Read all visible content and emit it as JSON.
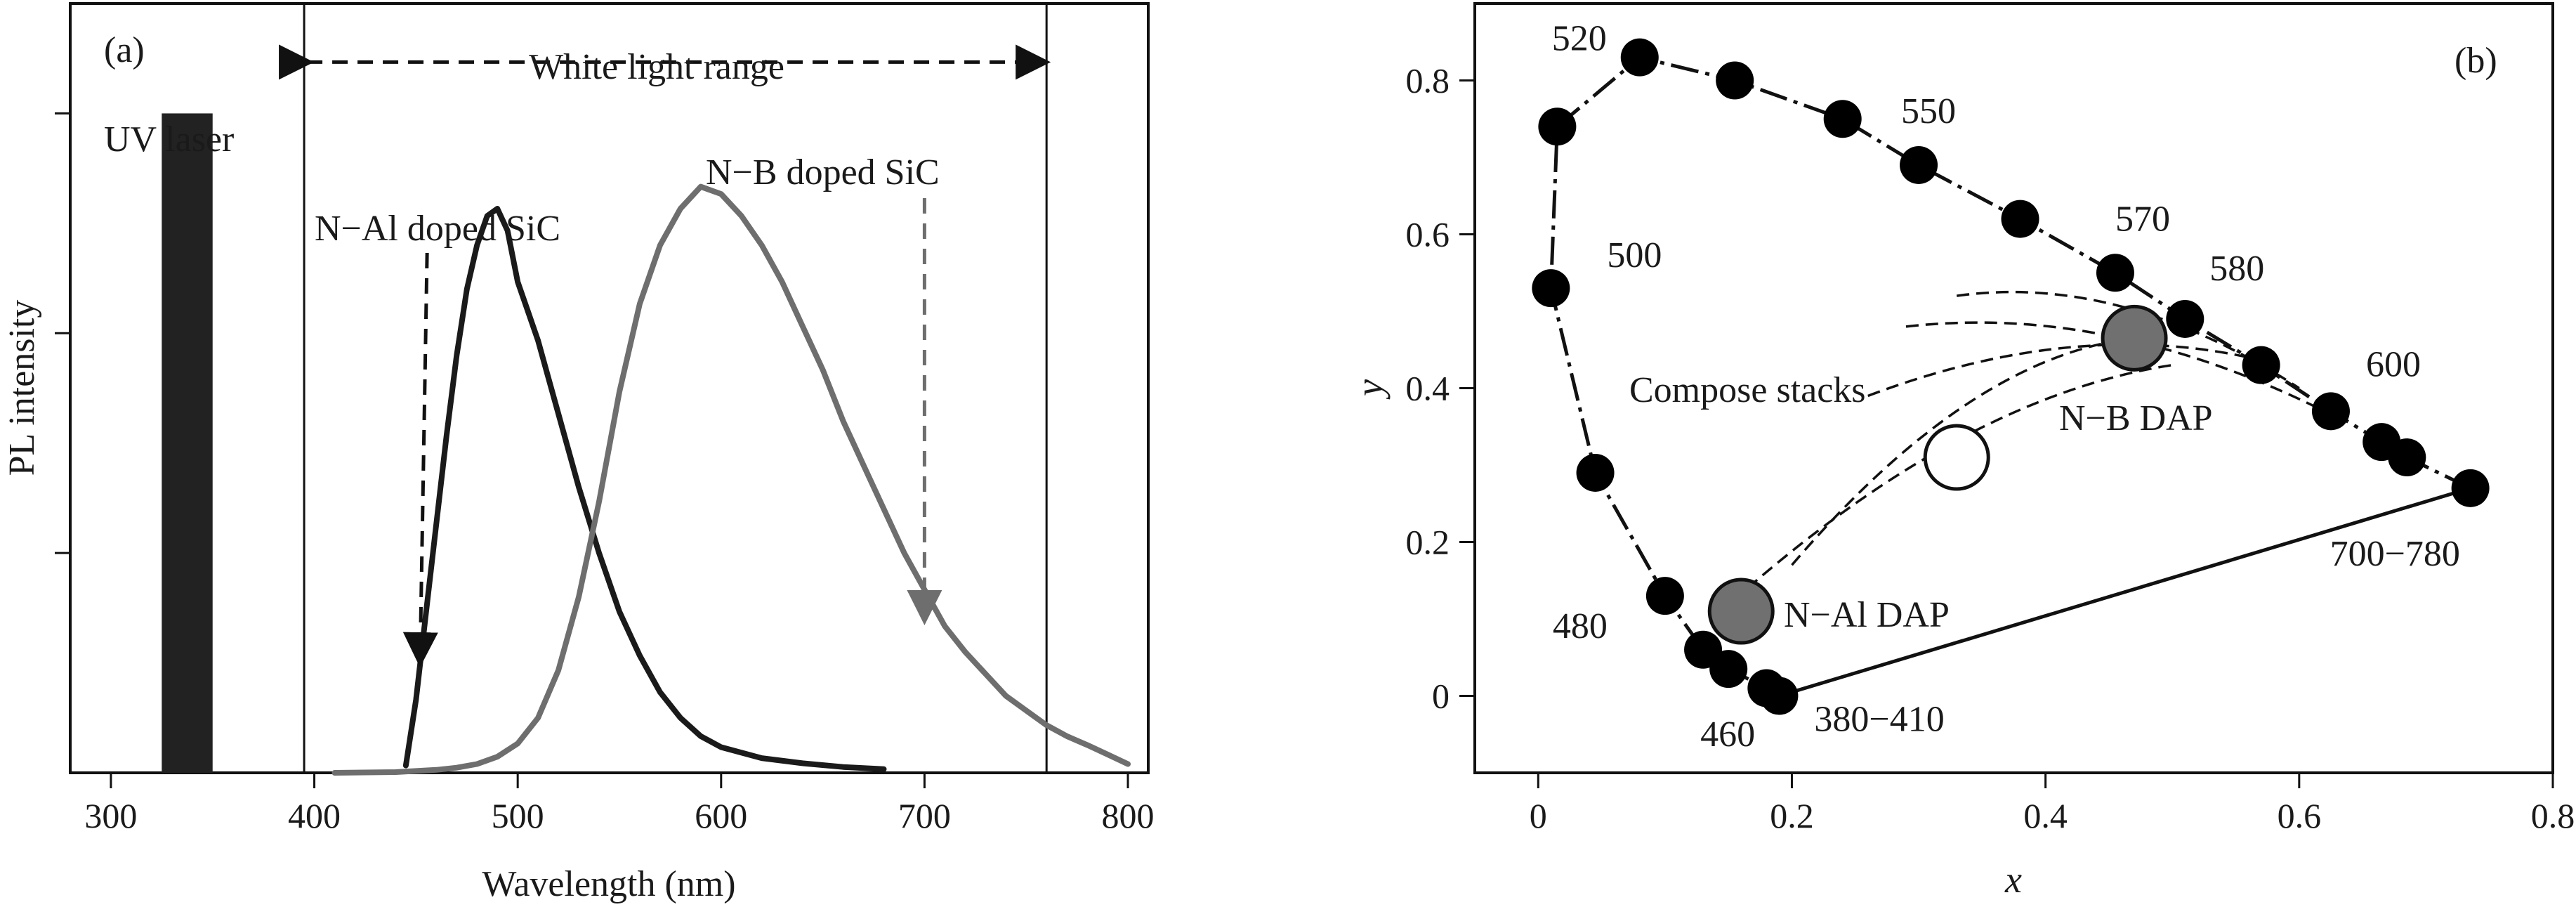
{
  "panels": [
    {
      "id": "a",
      "tag": "(a)",
      "header_label": "White light range",
      "uv_label": "UV laser",
      "nal_label": "N−Al doped SiC",
      "nb_label": "N−B doped SiC"
    },
    {
      "id": "b",
      "tag": "(b)",
      "compose_label": "Compose stacks",
      "nb_dap_label": "N−B DAP",
      "nal_dap_label": "N−Al DAP"
    }
  ],
  "chart_data": [
    {
      "type": "line",
      "panel": "(a)",
      "title": "",
      "xlabel": "Wavelength (nm)",
      "ylabel": "PL intensity",
      "xlim": [
        280,
        810
      ],
      "ylim": [
        0,
        1.05
      ],
      "x_ticks": [
        300,
        400,
        500,
        600,
        700,
        800
      ],
      "x_tick_labels": [
        "300",
        "400",
        "500",
        "600",
        "700",
        "800"
      ],
      "y_ticks": [
        0.3,
        0.6,
        0.9
      ],
      "y_tick_labels": [
        "",
        "",
        ""
      ],
      "grid": false,
      "series": [
        {
          "name": "N−Al doped SiC",
          "color": "#1a1a1a",
          "x": [
            445,
            450,
            455,
            460,
            465,
            470,
            475,
            480,
            485,
            490,
            495,
            500,
            505,
            510,
            515,
            520,
            530,
            540,
            550,
            560,
            570,
            580,
            590,
            600,
            620,
            640,
            660,
            680
          ],
          "y": [
            0.01,
            0.1,
            0.22,
            0.34,
            0.46,
            0.57,
            0.66,
            0.72,
            0.76,
            0.77,
            0.74,
            0.67,
            0.63,
            0.59,
            0.54,
            0.49,
            0.39,
            0.3,
            0.22,
            0.16,
            0.11,
            0.075,
            0.05,
            0.035,
            0.02,
            0.013,
            0.008,
            0.005
          ]
        },
        {
          "name": "N−B doped SiC",
          "color": "#6e6e6e",
          "x": [
            410,
            440,
            460,
            470,
            480,
            490,
            500,
            510,
            520,
            530,
            540,
            550,
            560,
            570,
            580,
            590,
            600,
            610,
            620,
            630,
            640,
            650,
            660,
            670,
            680,
            690,
            700,
            710,
            720,
            730,
            740,
            750,
            760,
            770,
            780,
            790,
            800
          ],
          "y": [
            0.0,
            0.001,
            0.004,
            0.007,
            0.012,
            0.022,
            0.04,
            0.075,
            0.14,
            0.24,
            0.37,
            0.52,
            0.64,
            0.72,
            0.77,
            0.8,
            0.79,
            0.76,
            0.72,
            0.67,
            0.61,
            0.55,
            0.48,
            0.42,
            0.36,
            0.3,
            0.25,
            0.2,
            0.165,
            0.135,
            0.105,
            0.085,
            0.065,
            0.05,
            0.038,
            0.025,
            0.012
          ]
        }
      ],
      "bars": [
        {
          "name": "UV laser",
          "x_from": 325,
          "x_to": 350,
          "y": 0.9,
          "color": "#222222"
        }
      ],
      "vertical_lines": [
        395,
        760
      ],
      "range_arrow": {
        "label": "White light range",
        "from": 395,
        "to": 760
      },
      "annotations": [
        {
          "text": "N−Al doped SiC",
          "arrow_at_x": 452
        },
        {
          "text": "N−B doped SiC",
          "arrow_at_x": 700
        }
      ]
    },
    {
      "type": "scatter",
      "panel": "(b)",
      "title": "",
      "xlabel": "x",
      "ylabel": "y",
      "xlim": [
        -0.05,
        0.8
      ],
      "ylim": [
        -0.1,
        0.9
      ],
      "x_ticks": [
        0,
        0.2,
        0.4,
        0.6,
        0.8
      ],
      "x_tick_labels": [
        "0",
        "0.2",
        "0.4",
        "0.6",
        "0.8"
      ],
      "y_ticks": [
        0,
        0.2,
        0.4,
        0.6,
        0.8
      ],
      "y_tick_labels": [
        "0",
        "0.2",
        "0.4",
        "0.6",
        "0.8"
      ],
      "grid": false,
      "series": [
        {
          "name": "",
          "color": "#000000",
          "x": [
            0.19,
            0.18,
            0.15,
            0.13,
            0.1,
            0.045,
            0.01,
            0.015,
            0.08,
            0.155,
            0.24,
            0.3,
            0.38,
            0.455,
            0.51,
            0.57,
            0.625,
            0.665,
            0.685,
            0.735
          ],
          "y": [
            0.0,
            0.01,
            0.035,
            0.06,
            0.13,
            0.29,
            0.53,
            0.74,
            0.83,
            0.8,
            0.75,
            0.69,
            0.62,
            0.55,
            0.49,
            0.43,
            0.37,
            0.33,
            0.31,
            0.27
          ]
        }
      ],
      "special_points": [
        {
          "name": "N−Al DAP",
          "x": 0.16,
          "y": 0.11,
          "fill": "#707070"
        },
        {
          "name": "N−B DAP",
          "x": 0.47,
          "y": 0.465,
          "fill": "#707070"
        },
        {
          "name": "",
          "x": 0.33,
          "y": 0.31,
          "fill": "#ffffff"
        }
      ],
      "wavelength_labels": [
        {
          "text": "520",
          "x": 0.08,
          "y": 0.83
        },
        {
          "text": "550",
          "x": 0.3,
          "y": 0.69
        },
        {
          "text": "570",
          "x": 0.455,
          "y": 0.55
        },
        {
          "text": "580",
          "x": 0.51,
          "y": 0.49
        },
        {
          "text": "600",
          "x": 0.625,
          "y": 0.37
        },
        {
          "text": "500",
          "x": 0.01,
          "y": 0.53
        },
        {
          "text": "480",
          "x": 0.1,
          "y": 0.13
        },
        {
          "text": "460",
          "x": 0.15,
          "y": 0.035
        },
        {
          "text": "380−410",
          "x": 0.19,
          "y": 0.0
        },
        {
          "text": "700−780",
          "x": 0.735,
          "y": 0.27
        }
      ],
      "annotations": [
        {
          "text": "Compose stacks"
        },
        {
          "text": "N−B DAP"
        },
        {
          "text": "N−Al DAP"
        }
      ]
    }
  ]
}
